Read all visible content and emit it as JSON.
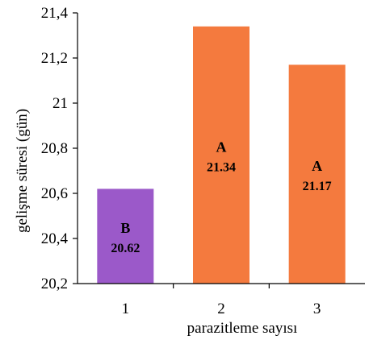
{
  "chart_data": {
    "type": "bar",
    "xlabel": "parazitleme sayısı",
    "ylabel": "gelişme süresi (gün)",
    "categories": [
      "1",
      "2",
      "3"
    ],
    "values": [
      20.62,
      21.34,
      21.17
    ],
    "letters": [
      "B",
      "A",
      "A"
    ],
    "value_labels": [
      "20.62",
      "21.34",
      "21.17"
    ],
    "ylim": [
      20.2,
      21.4
    ],
    "yticks": [
      20.2,
      20.4,
      20.6,
      20.8,
      21.0,
      21.2,
      21.4
    ],
    "ytick_labels": [
      "20,2",
      "20,4",
      "20,6",
      "20,8",
      "21",
      "21,2",
      "21,4"
    ],
    "bar_colors": [
      "#9b59c9",
      "#f47a3e",
      "#f47a3e"
    ],
    "grid": false,
    "legend": "none"
  }
}
